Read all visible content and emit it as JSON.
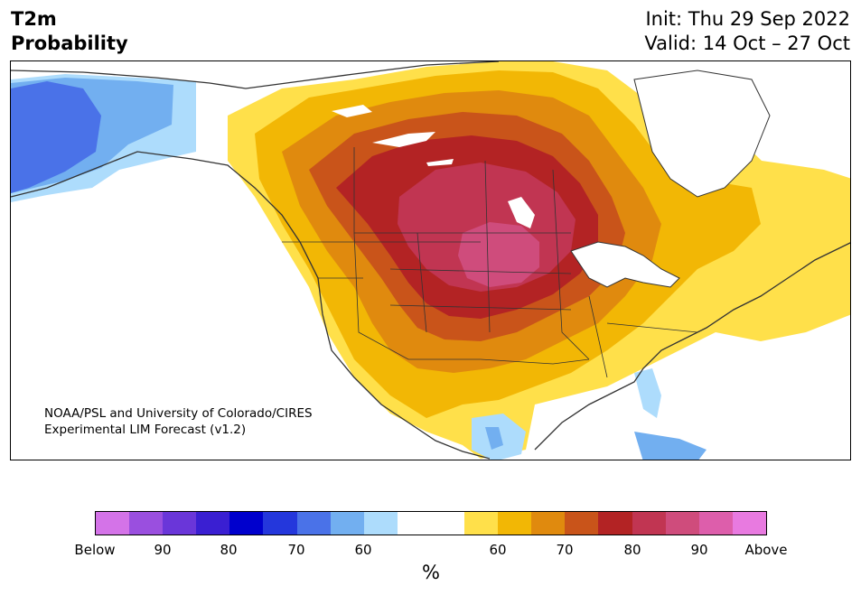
{
  "title": {
    "left_line1": "T2m",
    "left_line2": "Probability",
    "init": "Init: Thu 29 Sep 2022",
    "valid": "Valid: 14 Oct – 27 Oct"
  },
  "credit": {
    "line1": "NOAA/PSL and University of Colorado/CIRES",
    "line2": "Experimental LIM Forecast (v1.2)"
  },
  "colors": {
    "below_purple": "#d473e8",
    "below_90": "#9a4fdf",
    "below_85": "#6a36d9",
    "below_80": "#3a1fd2",
    "below_75": "#0000cd",
    "below_70": "#2437dc",
    "below_65": "#4a72e8",
    "below_60": "#72aff0",
    "below_55": "#addcfc",
    "neutral": "#ffffff",
    "above_55": "#ffe04a",
    "above_60": "#f2b705",
    "above_65": "#e08a0e",
    "above_70": "#c9541a",
    "above_75": "#b32324",
    "above_80": "#c13552",
    "above_85": "#cf4c7c",
    "above_90": "#dd5eab",
    "above_purple": "#e87ae0",
    "coast": "#333333"
  },
  "colorbar": {
    "segments": [
      "#d473e8",
      "#9a4fdf",
      "#6a36d9",
      "#3a1fd2",
      "#0000cd",
      "#2437dc",
      "#4a72e8",
      "#72aff0",
      "#addcfc",
      "#ffffff",
      "#ffffff",
      "#ffe04a",
      "#f2b705",
      "#e08a0e",
      "#c9541a",
      "#b32324",
      "#c13552",
      "#cf4c7c",
      "#dd5eab",
      "#e87ae0"
    ],
    "ticks": [
      "Below",
      "90",
      "80",
      "70",
      "60",
      "60",
      "70",
      "80",
      "90",
      "Above"
    ],
    "unit": "%"
  }
}
